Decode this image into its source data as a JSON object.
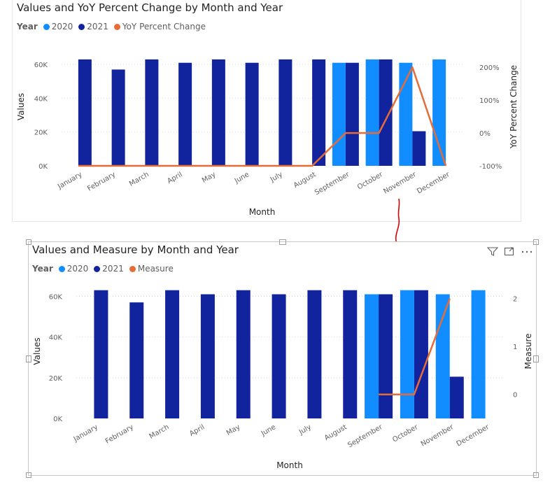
{
  "colors": {
    "color_2020": "#118DFF",
    "color_2021": "#12239E",
    "line": "#E66C37"
  },
  "top": {
    "title": "Values and YoY Percent Change by Month and Year",
    "legend_title": "Year",
    "legend_2020": "2020",
    "legend_2021": "2021",
    "legend_line": "YoY Percent Change"
  },
  "bottom": {
    "title": "Values and Measure by Month and Year",
    "legend_title": "Year",
    "legend_2020": "2020",
    "legend_2021": "2021",
    "legend_line": "Measure",
    "icons": [
      "filter-icon",
      "focus-mode-icon",
      "more-options-icon"
    ]
  },
  "chart_data": [
    {
      "type": "bar",
      "title": "Values and YoY Percent Change by Month and Year",
      "xlabel": "Month",
      "ylabel": "Values",
      "y2label": "YoY Percent Change",
      "categories": [
        "January",
        "February",
        "March",
        "April",
        "May",
        "June",
        "July",
        "August",
        "September",
        "October",
        "November",
        "December"
      ],
      "ylim": [
        0,
        70000
      ],
      "y_ticks": [
        0,
        20000,
        40000,
        60000
      ],
      "y_tick_labels": [
        "0K",
        "20K",
        "40K",
        "60K"
      ],
      "y2lim": [
        -1,
        2.6
      ],
      "y2_ticks": [
        -1,
        0,
        1,
        2
      ],
      "y2_tick_labels": [
        "-100%",
        "0%",
        "100%",
        "200%"
      ],
      "grid": true,
      "legend_position": "top-left",
      "series": [
        {
          "name": "2020",
          "kind": "bar",
          "color": "#118DFF",
          "values": [
            null,
            null,
            null,
            null,
            null,
            null,
            null,
            null,
            61000,
            63000,
            61000,
            63000
          ]
        },
        {
          "name": "2021",
          "kind": "bar",
          "color": "#12239E",
          "values": [
            63000,
            57000,
            63000,
            61000,
            63000,
            61000,
            63000,
            63000,
            61000,
            63000,
            20500,
            null
          ]
        },
        {
          "name": "YoY Percent Change",
          "kind": "line",
          "axis": "right",
          "color": "#E66C37",
          "values": [
            -1,
            -1,
            -1,
            -1,
            -1,
            -1,
            -1,
            -1,
            0,
            0,
            2,
            -1
          ]
        }
      ]
    },
    {
      "type": "bar",
      "title": "Values and Measure by Month and Year",
      "xlabel": "Month",
      "ylabel": "Values",
      "y2label": "Measure",
      "categories": [
        "January",
        "February",
        "March",
        "April",
        "May",
        "June",
        "July",
        "August",
        "September",
        "October",
        "November",
        "December"
      ],
      "ylim": [
        0,
        66000
      ],
      "y_ticks": [
        0,
        20000,
        40000,
        60000
      ],
      "y_tick_labels": [
        "0K",
        "20K",
        "40K",
        "60K"
      ],
      "y2lim": [
        -0.5,
        2.3
      ],
      "y2_ticks": [
        0,
        1,
        2
      ],
      "y2_tick_labels": [
        "0",
        "1",
        "2"
      ],
      "grid": true,
      "legend_position": "top-left",
      "series": [
        {
          "name": "2020",
          "kind": "bar",
          "color": "#118DFF",
          "values": [
            null,
            null,
            null,
            null,
            null,
            null,
            null,
            null,
            61000,
            63000,
            61000,
            63000
          ]
        },
        {
          "name": "2021",
          "kind": "bar",
          "color": "#12239E",
          "values": [
            63000,
            57000,
            63000,
            61000,
            63000,
            61000,
            63000,
            63000,
            61000,
            63000,
            20500,
            null
          ]
        },
        {
          "name": "Measure",
          "kind": "line",
          "axis": "right",
          "color": "#E66C37",
          "values": [
            null,
            null,
            null,
            null,
            null,
            null,
            null,
            null,
            0,
            0,
            2,
            null
          ]
        }
      ]
    }
  ]
}
